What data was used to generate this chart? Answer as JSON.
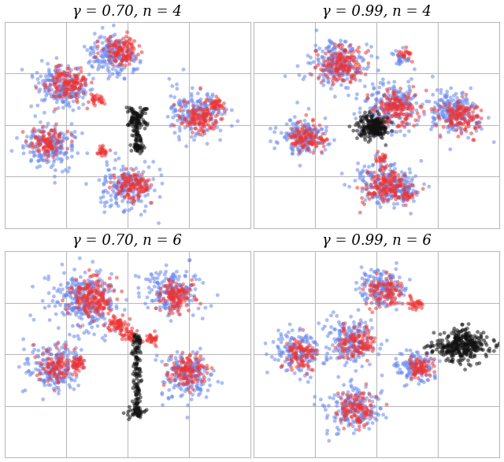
{
  "titles": [
    "γ = 0.70, n = 4",
    "γ = 0.99, n = 4",
    "γ = 0.70, n = 6",
    "γ = 0.99, n = 6"
  ],
  "blue_color": "#6688ee",
  "red_color": "#ee3333",
  "black_color": "#111111",
  "alpha": 0.55,
  "point_size": 12,
  "background": "#ffffff",
  "grid_color": "#bbbbbb",
  "title_fontsize": 13,
  "seed": 7
}
